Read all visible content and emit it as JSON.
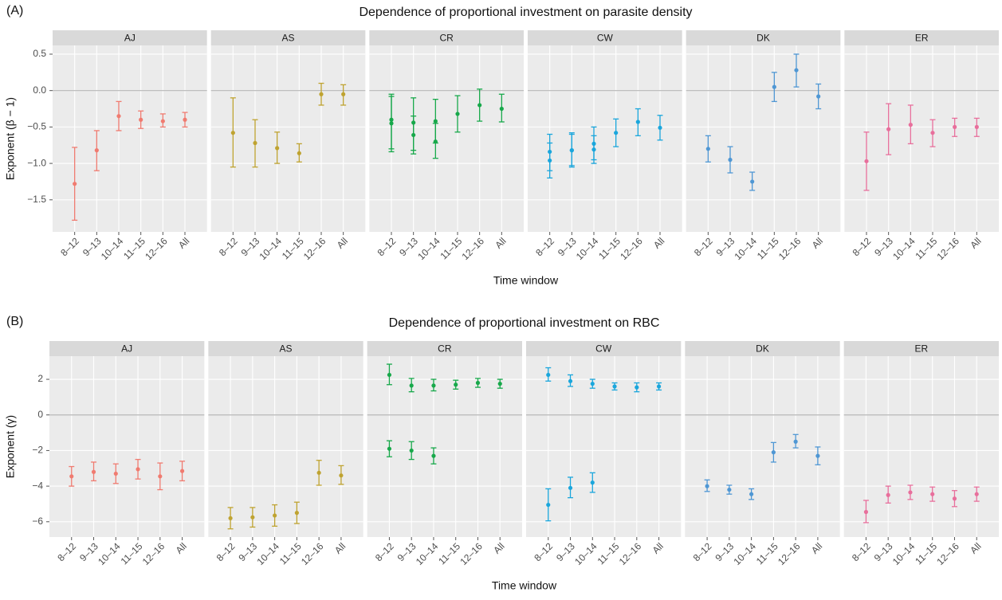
{
  "chart_data": [
    {
      "type": "errorbar",
      "panel_label": "(A)",
      "title": "Dependence of proportional investment on parasite density",
      "x_label": "Time window",
      "y_label": "Exponent (β − 1)",
      "categories": [
        "8–12",
        "9–13",
        "10–14",
        "11–15",
        "12–16",
        "All"
      ],
      "ylim": [
        -1.94,
        0.62
      ],
      "yticks": [
        0.5,
        {
          "value": 0,
          "label": "0.0"
        },
        {
          "value": -0.5,
          "label": "−0.5"
        },
        {
          "value": -1,
          "label": "−1.0"
        },
        {
          "value": -1.5,
          "label": "−1.5"
        }
      ],
      "reference_line": 0,
      "grid": true,
      "facets": [
        {
          "name": "AJ",
          "color": "#f07b70",
          "series": [
            {
              "values": [
                -1.28,
                -0.82,
                -0.35,
                -0.4,
                -0.42,
                -0.4
              ],
              "lower": [
                -1.78,
                -1.1,
                -0.55,
                -0.52,
                -0.5,
                -0.5
              ],
              "upper": [
                -0.78,
                -0.55,
                -0.15,
                -0.28,
                -0.32,
                -0.3
              ]
            }
          ]
        },
        {
          "name": "AS",
          "color": "#bfa330",
          "series": [
            {
              "values": [
                -0.58,
                -0.72,
                -0.79,
                -0.86,
                -0.05,
                -0.05
              ],
              "lower": [
                -1.05,
                -1.05,
                -1.0,
                -0.98,
                -0.2,
                -0.2
              ],
              "upper": [
                -0.1,
                -0.4,
                -0.57,
                -0.73,
                0.1,
                0.08
              ]
            }
          ]
        },
        {
          "name": "CR",
          "color": "#17a84a",
          "series": [
            {
              "values": [
                -0.4,
                -0.44,
                -0.42,
                -0.32,
                -0.2,
                -0.25
              ],
              "lower": [
                -0.8,
                -0.82,
                -0.72,
                -0.57,
                -0.42,
                -0.43
              ],
              "upper": [
                -0.05,
                -0.1,
                -0.12,
                -0.07,
                0.02,
                -0.05
              ]
            },
            {
              "values": [
                -0.45,
                -0.61,
                -0.7,
                null,
                null,
                null
              ],
              "lower": [
                -0.84,
                -0.87,
                -0.93,
                null,
                null,
                null
              ],
              "upper": [
                -0.08,
                -0.35,
                -0.45,
                null,
                null,
                null
              ]
            }
          ]
        },
        {
          "name": "CW",
          "color": "#1aa6dc",
          "series": [
            {
              "values": [
                -0.84,
                -0.82,
                -0.73,
                -0.58,
                -0.43,
                -0.51
              ],
              "lower": [
                -1.1,
                -1.05,
                -0.95,
                -0.77,
                -0.62,
                -0.68
              ],
              "upper": [
                -0.6,
                -0.58,
                -0.5,
                -0.39,
                -0.25,
                -0.34
              ]
            },
            {
              "values": [
                -0.96,
                -0.82,
                -0.81,
                null,
                null,
                null
              ],
              "lower": [
                -1.2,
                -1.03,
                -1.0,
                null,
                null,
                null
              ],
              "upper": [
                -0.72,
                -0.6,
                -0.62,
                null,
                null,
                null
              ]
            }
          ]
        },
        {
          "name": "DK",
          "color": "#4f97d4",
          "series": [
            {
              "values": [
                -0.8,
                -0.95,
                -1.25,
                0.05,
                0.28,
                -0.08
              ],
              "lower": [
                -0.98,
                -1.13,
                -1.37,
                -0.15,
                0.05,
                -0.25
              ],
              "upper": [
                -0.62,
                -0.77,
                -1.12,
                0.25,
                0.5,
                0.09
              ]
            }
          ]
        },
        {
          "name": "ER",
          "color": "#e86f9c",
          "series": [
            {
              "values": [
                -0.97,
                -0.53,
                -0.47,
                -0.58,
                -0.5,
                -0.5
              ],
              "lower": [
                -1.37,
                -0.88,
                -0.73,
                -0.77,
                -0.63,
                -0.63
              ],
              "upper": [
                -0.57,
                -0.18,
                -0.2,
                -0.4,
                -0.38,
                -0.38
              ]
            }
          ]
        }
      ]
    },
    {
      "type": "errorbar",
      "panel_label": "(B)",
      "title": "Dependence of proportional investment on RBC",
      "x_label": "Time window",
      "y_label": "Exponent (γ)",
      "categories": [
        "8–12",
        "9–13",
        "10–14",
        "11–15",
        "12–16",
        "All"
      ],
      "ylim": [
        -6.86,
        3.3
      ],
      "yticks": [
        2,
        0,
        {
          "value": -2,
          "label": "−2"
        },
        {
          "value": -4,
          "label": "−4"
        },
        {
          "value": -6,
          "label": "−6"
        }
      ],
      "reference_line": 0,
      "grid": true,
      "facets": [
        {
          "name": "AJ",
          "color": "#f07b70",
          "series": [
            {
              "values": [
                -3.45,
                -3.2,
                -3.3,
                -3.05,
                -3.45,
                -3.15
              ],
              "lower": [
                -4.0,
                -3.7,
                -3.85,
                -3.6,
                -4.2,
                -3.7
              ],
              "upper": [
                -2.9,
                -2.65,
                -2.75,
                -2.5,
                -2.7,
                -2.6
              ]
            }
          ]
        },
        {
          "name": "AS",
          "color": "#bfa330",
          "series": [
            {
              "values": [
                -5.8,
                -5.75,
                -5.65,
                -5.5,
                -3.25,
                -3.4
              ],
              "lower": [
                -6.4,
                -6.3,
                -6.25,
                -6.1,
                -3.95,
                -3.9
              ],
              "upper": [
                -5.2,
                -5.2,
                -5.05,
                -4.9,
                -2.55,
                -2.85
              ]
            }
          ]
        },
        {
          "name": "CR",
          "color": "#17a84a",
          "series": [
            {
              "values": [
                2.25,
                1.65,
                1.65,
                1.7,
                1.8,
                1.75
              ],
              "lower": [
                1.7,
                1.3,
                1.35,
                1.45,
                1.55,
                1.5
              ],
              "upper": [
                2.85,
                2.05,
                2.0,
                1.95,
                2.05,
                2.0
              ]
            },
            {
              "values": [
                -1.9,
                -2.0,
                -2.3,
                null,
                null,
                null
              ],
              "lower": [
                -2.35,
                -2.5,
                -2.75,
                null,
                null,
                null
              ],
              "upper": [
                -1.45,
                -1.5,
                -1.85,
                null,
                null,
                null
              ]
            }
          ]
        },
        {
          "name": "CW",
          "color": "#1aa6dc",
          "series": [
            {
              "values": [
                2.25,
                1.9,
                1.75,
                1.6,
                1.55,
                1.6
              ],
              "lower": [
                1.9,
                1.6,
                1.5,
                1.4,
                1.3,
                1.4
              ],
              "upper": [
                2.65,
                2.25,
                2.0,
                1.8,
                1.8,
                1.8
              ]
            },
            {
              "values": [
                -5.05,
                -4.1,
                -3.8,
                null,
                null,
                null
              ],
              "lower": [
                -5.95,
                -4.65,
                -4.35,
                null,
                null,
                null
              ],
              "upper": [
                -4.15,
                -3.5,
                -3.25,
                null,
                null,
                null
              ]
            }
          ]
        },
        {
          "name": "DK",
          "color": "#4f97d4",
          "series": [
            {
              "values": [
                -4.0,
                -4.2,
                -4.45,
                -2.1,
                -1.5,
                -2.3
              ],
              "lower": [
                -4.3,
                -4.45,
                -4.75,
                -2.65,
                -1.85,
                -2.8
              ],
              "upper": [
                -3.65,
                -3.95,
                -4.15,
                -1.55,
                -1.1,
                -1.8
              ]
            }
          ]
        },
        {
          "name": "ER",
          "color": "#e86f9c",
          "series": [
            {
              "values": [
                -5.45,
                -4.5,
                -4.35,
                -4.45,
                -4.7,
                -4.45
              ],
              "lower": [
                -6.05,
                -4.95,
                -4.75,
                -4.85,
                -5.15,
                -4.85
              ],
              "upper": [
                -4.8,
                -4.0,
                -3.95,
                -4.05,
                -4.25,
                -4.05
              ]
            }
          ]
        }
      ]
    }
  ]
}
